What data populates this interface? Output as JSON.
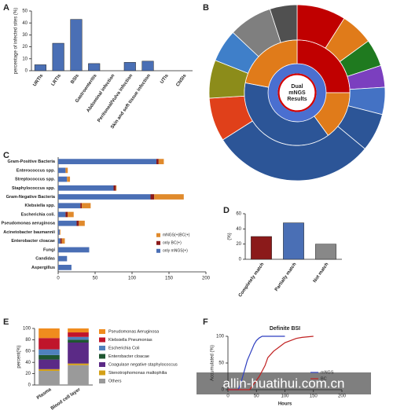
{
  "chart_data": [
    {
      "panel": "A",
      "type": "bar",
      "ylabel": "percentage of infected sites (%)",
      "categories": [
        "URTIs",
        "LRTIs",
        "BSIs",
        "Gastroenteritis",
        "Abdominal infection",
        "Peritoneal/Vulva infection",
        "Skin and soft tissue infection",
        "UTIs",
        "CNSIs"
      ],
      "values": [
        5,
        23,
        43,
        6,
        0,
        7,
        8,
        0,
        0
      ],
      "color": "#4a6fb5",
      "ylim": [
        0,
        50
      ],
      "yticks": [
        0,
        10,
        20,
        30,
        40,
        50
      ]
    },
    {
      "panel": "B",
      "type": "sunburst",
      "center_label": [
        "Dual",
        "mNGS",
        "Results"
      ],
      "rings": [
        {
          "values": [
            100
          ],
          "colors": [
            "#d40000"
          ]
        },
        {
          "values": [
            100
          ],
          "colors": [
            "#4a6fd0"
          ]
        },
        {
          "values": [
            25,
            15,
            38,
            22
          ],
          "colors": [
            "#c00000",
            "#e07b1a",
            "#2c5597",
            "#e07b1a"
          ]
        },
        {
          "values": [
            9,
            6,
            5,
            4,
            5,
            7,
            30,
            8,
            7,
            6,
            8,
            5
          ],
          "colors": [
            "#c00000",
            "#e07b1a",
            "#1f7a1f",
            "#7b3fbf",
            "#4472c4",
            "#2c5597",
            "#2c5597",
            "#e0401a",
            "#8c8c1a",
            "#3f7fc9",
            "#7f7f7f",
            "#505050"
          ]
        }
      ]
    },
    {
      "panel": "C",
      "type": "hbar_stacked",
      "categories": [
        "Gram-Positive Bacteria",
        "Enterococcus spp.",
        "Streptococcus spp.",
        "Staphylococcus spp.",
        "Gram-Negative Bacteria",
        "Klebsiella spp.",
        "Escherichia coli.",
        "Pseudomonas aeruginosa",
        "Acinetobacter baumannii",
        "Enterobacter cloacae",
        "Fungi",
        "Candidas",
        "Aspergillus"
      ],
      "series": [
        {
          "name": "only mNGS(+)",
          "color": "#4a6fb5",
          "values": [
            133,
            10,
            12,
            75,
            125,
            30,
            10,
            25,
            2,
            3,
            42,
            12,
            18
          ]
        },
        {
          "name": "only BC(+)",
          "color": "#8b1a1a",
          "values": [
            3,
            0,
            0,
            3,
            5,
            2,
            3,
            3,
            0,
            2,
            0,
            0,
            0
          ]
        },
        {
          "name": "mNGS(+)BC(+)",
          "color": "#e08a2c",
          "values": [
            7,
            3,
            4,
            1,
            40,
            12,
            8,
            8,
            1,
            4,
            0,
            0,
            0
          ]
        }
      ],
      "xlim": [
        0,
        200
      ],
      "xticks": [
        0,
        50,
        100,
        150,
        200
      ]
    },
    {
      "panel": "D",
      "type": "bar",
      "ylabel": "(%)",
      "categories": [
        "Completely match",
        "Partially match",
        "Not match"
      ],
      "values": [
        30,
        48,
        20
      ],
      "colors": [
        "#8b1a1a",
        "#4a6fb5",
        "#888888"
      ],
      "ylim": [
        0,
        60
      ],
      "yticks": [
        0,
        20,
        40,
        60
      ]
    },
    {
      "panel": "E",
      "type": "stacked_percent",
      "ylabel": "percent(%)",
      "categories": [
        "Plasma",
        "Blood cell layer"
      ],
      "series": [
        {
          "name": "Others",
          "color": "#9a9a9a",
          "values": [
            25,
            35
          ]
        },
        {
          "name": "Stenotrophomonas maltophilia",
          "color": "#d4a017",
          "values": [
            3,
            3
          ]
        },
        {
          "name": "Coagulase negative staphylococcus",
          "color": "#5b2a86",
          "values": [
            17,
            37
          ]
        },
        {
          "name": "Enterobacter cloacae",
          "color": "#1e5631",
          "values": [
            8,
            5
          ]
        },
        {
          "name": "Escherichia Coli",
          "color": "#4f81bd",
          "values": [
            10,
            5
          ]
        },
        {
          "name": "Klebsiella Pneumonias",
          "color": "#c0152b",
          "values": [
            20,
            8
          ]
        },
        {
          "name": "Pseudomonas Aeruginosa",
          "color": "#f08c1e",
          "values": [
            17,
            7
          ]
        }
      ],
      "ylim": [
        0,
        100
      ],
      "yticks": [
        0,
        20,
        40,
        60,
        80,
        100
      ]
    },
    {
      "panel": "F",
      "type": "line",
      "title": "Definite BSI",
      "xlabel": "Hours",
      "ylabel": "Accumulated (%)",
      "series": [
        {
          "name": "mNGS",
          "color": "#2f3fc0",
          "x": [
            0,
            18,
            22,
            26,
            30,
            34,
            38,
            42,
            46,
            50,
            55,
            60,
            100
          ],
          "values": [
            0,
            0,
            10,
            25,
            40,
            55,
            65,
            75,
            85,
            92,
            97,
            100,
            100
          ]
        },
        {
          "name": "BC",
          "color": "#c02020",
          "x": [
            0,
            38,
            45,
            55,
            65,
            70,
            80,
            90,
            100,
            110,
            120,
            130,
            150
          ],
          "values": [
            0,
            0,
            10,
            25,
            45,
            60,
            72,
            80,
            88,
            92,
            96,
            98,
            100
          ]
        }
      ],
      "xlim": [
        0,
        200
      ],
      "xticks": [
        0,
        50,
        100,
        150,
        200
      ],
      "ylim": [
        0,
        100
      ],
      "yticks": [
        0,
        50,
        100
      ]
    }
  ],
  "watermark": "allin-huatihui.com.cn"
}
